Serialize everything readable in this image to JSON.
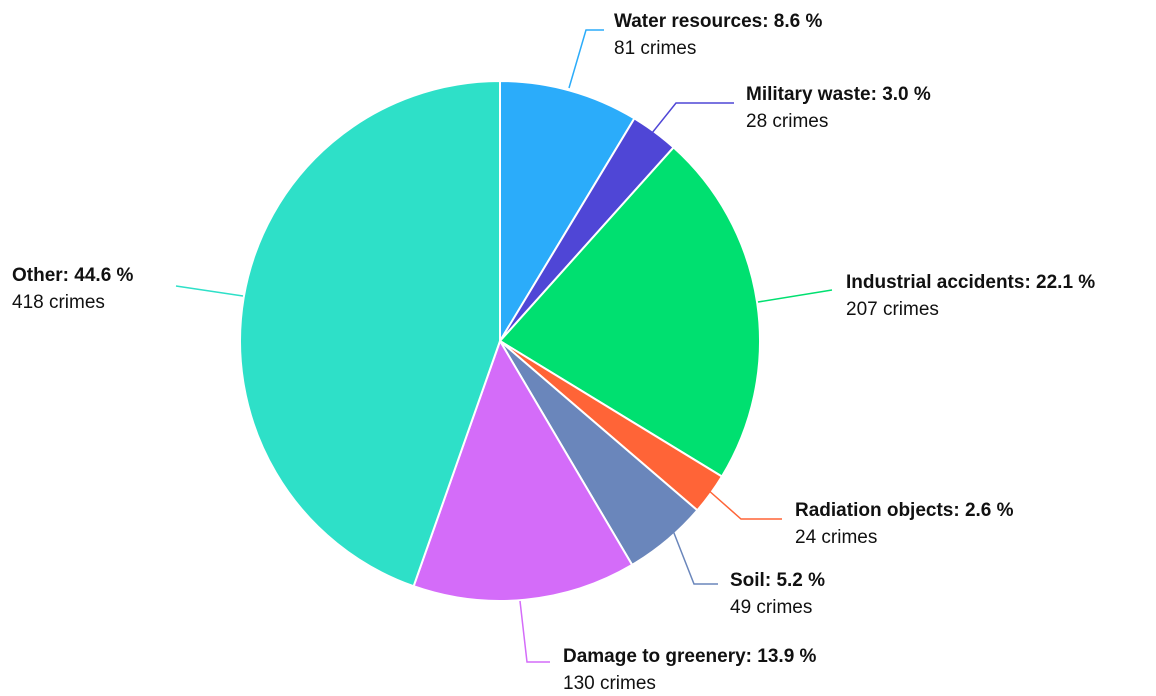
{
  "chart_data": {
    "type": "pie",
    "colors": {
      "water-resources": "#2bacfa",
      "military-waste": "#4f46d6",
      "industrial-accidents": "#00e070",
      "radiation-objects": "#ff6437",
      "soil": "#6a86bb",
      "damage-to-greenery": "#d46cf9",
      "other": "#2ee0c8"
    },
    "slices": [
      {
        "key": "water-resources",
        "label": "Water resources",
        "value": 81,
        "percent": 8.6,
        "title": "Water resources: 8.6 %",
        "sub": "81 crimes"
      },
      {
        "key": "military-waste",
        "label": "Military waste",
        "value": 28,
        "percent": 3.0,
        "title": "Military waste: 3.0 %",
        "sub": "28 crimes"
      },
      {
        "key": "industrial-accidents",
        "label": "Industrial accidents",
        "value": 207,
        "percent": 22.1,
        "title": "Industrial accidents: 22.1 %",
        "sub": "207 crimes"
      },
      {
        "key": "radiation-objects",
        "label": "Radiation objects",
        "value": 24,
        "percent": 2.6,
        "title": "Radiation objects: 2.6 %",
        "sub": "24 crimes"
      },
      {
        "key": "soil",
        "label": "Soil",
        "value": 49,
        "percent": 5.2,
        "title": "Soil: 5.2 %",
        "sub": "49 crimes"
      },
      {
        "key": "damage-to-greenery",
        "label": "Damage to greenery",
        "value": 130,
        "percent": 13.9,
        "title": "Damage to greenery: 13.9 %",
        "sub": "130 crimes"
      },
      {
        "key": "other",
        "label": "Other",
        "value": 418,
        "percent": 44.6,
        "title": "Other: 44.6 %",
        "sub": "418 crimes"
      }
    ]
  }
}
